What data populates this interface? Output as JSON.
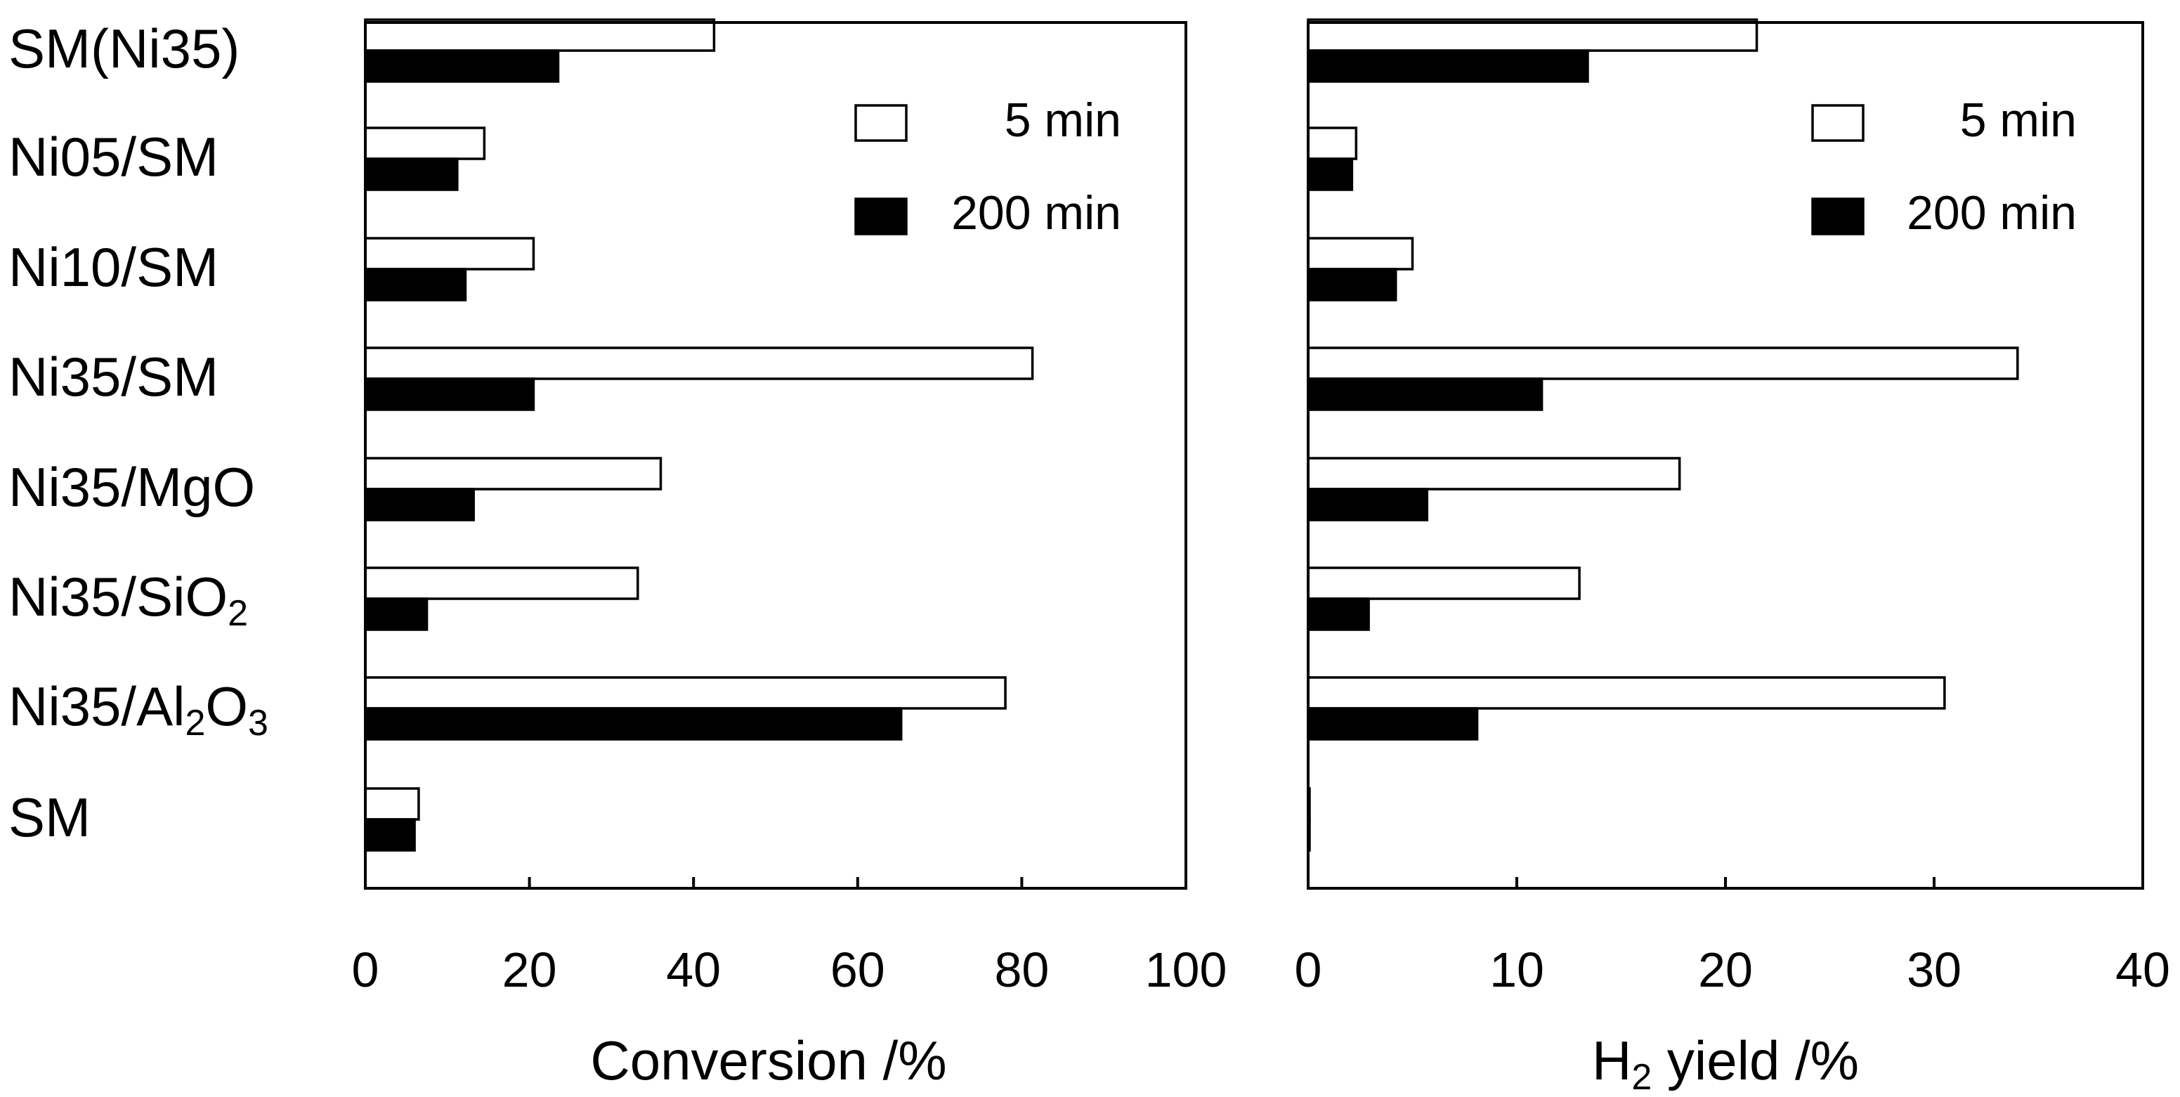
{
  "chart_data": [
    {
      "type": "bar",
      "orientation": "horizontal",
      "categories": [
        "SM(Ni35)",
        "Ni05/SM",
        "Ni10/SM",
        "Ni35/SM",
        "Ni35/MgO",
        "Ni35/SiO2",
        "Ni35/Al2O3",
        "SM"
      ],
      "series": [
        {
          "name": "5 min",
          "color": "#ffffff",
          "values": [
            42.5,
            14.5,
            20.5,
            81.3,
            36.0,
            33.2,
            78.0,
            6.5
          ]
        },
        {
          "name": "200 min",
          "color": "#000000",
          "values": [
            23.5,
            11.2,
            12.2,
            20.5,
            13.2,
            7.5,
            65.3,
            6.0
          ]
        }
      ],
      "xlabel": "Conversion /%",
      "xlim": [
        0,
        100
      ],
      "xticks": [
        "0",
        "20",
        "40",
        "60",
        "80",
        "100"
      ],
      "legend_position": "top-right"
    },
    {
      "type": "bar",
      "orientation": "horizontal",
      "categories": [
        "SM(Ni35)",
        "Ni05/SM",
        "Ni10/SM",
        "Ni35/SM",
        "Ni35/MgO",
        "Ni35/SiO2",
        "Ni35/Al2O3",
        "SM"
      ],
      "series": [
        {
          "name": "5 min",
          "color": "#ffffff",
          "values": [
            21.5,
            2.3,
            5.0,
            34.0,
            17.8,
            13.0,
            30.5,
            0.0
          ]
        },
        {
          "name": "200 min",
          "color": "#000000",
          "values": [
            13.4,
            2.1,
            4.2,
            11.2,
            5.7,
            2.9,
            8.1,
            0.0
          ]
        }
      ],
      "xlabel": "H2 yield /%",
      "xlim": [
        0,
        40
      ],
      "xticks": [
        "0",
        "10",
        "20",
        "30",
        "40"
      ],
      "legend_position": "top-right"
    }
  ],
  "labels": {
    "categories_display": [
      {
        "main": "SM(Ni35)"
      },
      {
        "main": "Ni05/SM"
      },
      {
        "main": "Ni10/SM"
      },
      {
        "main": "Ni35/SM"
      },
      {
        "main": "Ni35/MgO"
      },
      {
        "main": "Ni35/SiO",
        "sub1": "2"
      },
      {
        "main": "Ni35/Al",
        "sub1": "2",
        "main2": "O",
        "sub2": "3"
      },
      {
        "main": "SM"
      }
    ],
    "left_xlabel": "Conversion /%",
    "right_xlabel_prefix": "H",
    "right_xlabel_sub": "2",
    "right_xlabel_suffix": " yield /%",
    "legend": {
      "series1": "5 min",
      "series2": "200 min"
    }
  }
}
